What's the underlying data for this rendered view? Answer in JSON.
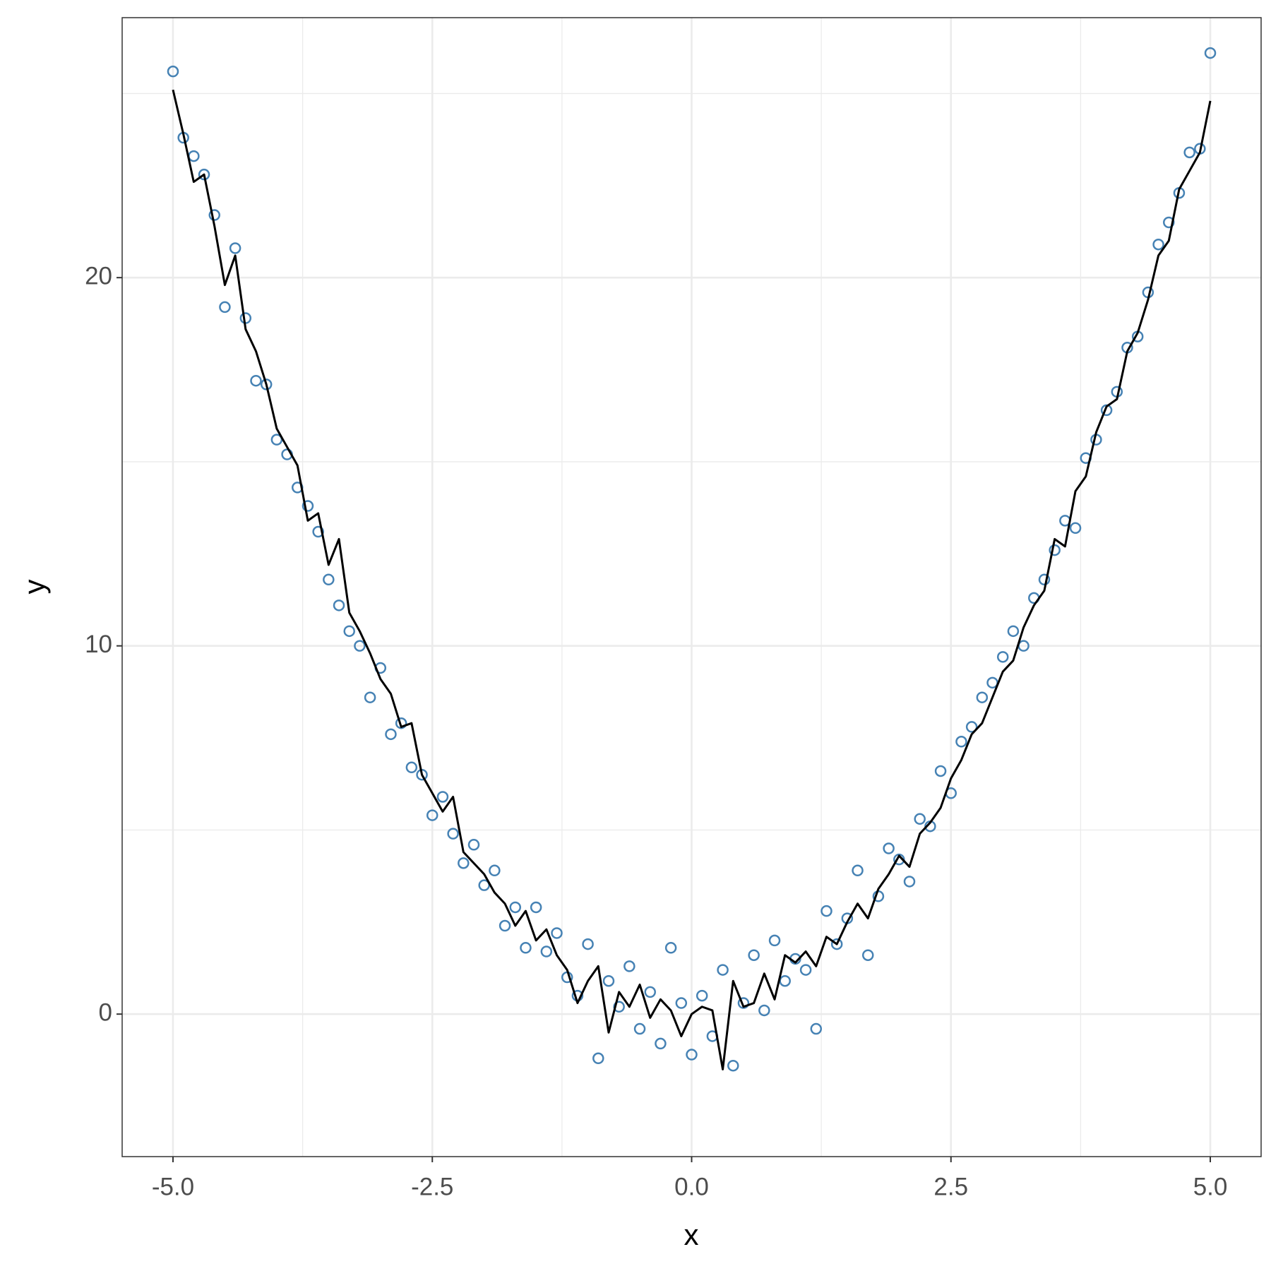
{
  "chart_data": {
    "type": "scatter",
    "x_label": "x",
    "y_label": "y",
    "x": [
      -5,
      -4.9,
      -4.8,
      -4.7,
      -4.6,
      -4.5,
      -4.4,
      -4.3,
      -4.2,
      -4.1,
      -4,
      -3.9,
      -3.8,
      -3.7,
      -3.6,
      -3.5,
      -3.4,
      -3.3,
      -3.2,
      -3.1,
      -3,
      -2.9,
      -2.8,
      -2.7,
      -2.6,
      -2.5,
      -2.4,
      -2.3,
      -2.2,
      -2.1,
      -2,
      -1.9,
      -1.8,
      -1.7,
      -1.6,
      -1.5,
      -1.4,
      -1.3,
      -1.2,
      -1.1,
      -1,
      -0.9,
      -0.8,
      -0.7,
      -0.6,
      -0.5,
      -0.4,
      -0.3,
      -0.2,
      -0.1,
      0,
      0.1,
      0.2,
      0.3,
      0.4,
      0.5,
      0.6,
      0.7,
      0.8,
      0.9,
      1,
      1.1,
      1.2,
      1.3,
      1.4,
      1.5,
      1.6,
      1.7,
      1.8,
      1.9,
      2,
      2.1,
      2.2,
      2.3,
      2.4,
      2.5,
      2.6,
      2.7,
      2.8,
      2.9,
      3,
      3.1,
      3.2,
      3.3,
      3.4,
      3.5,
      3.6,
      3.7,
      3.8,
      3.9,
      4,
      4.1,
      4.2,
      4.3,
      4.4,
      4.5,
      4.6,
      4.7,
      4.8,
      4.9,
      5
    ],
    "series": [
      {
        "type": "scatter",
        "color": "#4682b4",
        "values": [
          25.6,
          23.8,
          23.3,
          22.8,
          21.7,
          19.2,
          20.8,
          18.9,
          17.2,
          17.1,
          15.6,
          15.2,
          14.3,
          13.8,
          13.1,
          11.8,
          11.1,
          10.4,
          10.0,
          8.6,
          9.4,
          7.6,
          7.9,
          6.7,
          6.5,
          5.4,
          5.9,
          4.9,
          4.1,
          4.6,
          3.5,
          3.9,
          2.4,
          2.9,
          1.8,
          2.9,
          1.7,
          2.2,
          1.0,
          0.5,
          1.9,
          -1.2,
          0.9,
          0.2,
          1.3,
          -0.4,
          0.6,
          -0.8,
          1.8,
          0.3,
          -1.1,
          0.5,
          -0.6,
          1.2,
          -1.4,
          0.3,
          1.6,
          0.1,
          2.0,
          0.9,
          1.5,
          1.2,
          -0.4,
          2.8,
          1.9,
          2.6,
          3.9,
          1.6,
          3.2,
          4.5,
          4.2,
          3.6,
          5.3,
          5.1,
          6.6,
          6.0,
          7.4,
          7.8,
          8.6,
          9.0,
          9.7,
          10.4,
          10.0,
          11.3,
          11.8,
          12.6,
          13.4,
          13.2,
          15.1,
          15.6,
          16.4,
          16.9,
          18.1,
          18.4,
          19.6,
          20.9,
          21.5,
          22.3,
          23.4,
          23.5,
          26.1
        ]
      },
      {
        "type": "line",
        "color": "#000000",
        "values": [
          25.1,
          23.9,
          22.6,
          22.8,
          21.4,
          19.8,
          20.6,
          18.6,
          18.0,
          17.1,
          15.9,
          15.4,
          14.9,
          13.4,
          13.6,
          12.2,
          12.9,
          10.9,
          10.4,
          9.8,
          9.1,
          8.7,
          7.8,
          7.9,
          6.5,
          6.0,
          5.5,
          5.9,
          4.4,
          4.1,
          3.8,
          3.3,
          3.0,
          2.4,
          2.8,
          2.0,
          2.3,
          1.6,
          1.2,
          0.3,
          0.9,
          1.3,
          -0.5,
          0.6,
          0.2,
          0.8,
          -0.1,
          0.4,
          0.1,
          -0.6,
          0.0,
          0.2,
          0.1,
          -1.5,
          0.9,
          0.2,
          0.3,
          1.1,
          0.4,
          1.6,
          1.4,
          1.7,
          1.3,
          2.1,
          1.9,
          2.5,
          3.0,
          2.6,
          3.4,
          3.8,
          4.3,
          4.0,
          4.9,
          5.2,
          5.6,
          6.4,
          6.9,
          7.6,
          7.9,
          8.6,
          9.3,
          9.6,
          10.5,
          11.1,
          11.5,
          12.9,
          12.7,
          14.2,
          14.6,
          15.8,
          16.5,
          16.7,
          18.0,
          18.5,
          19.4,
          20.6,
          21.0,
          22.4,
          22.9,
          23.4,
          24.8
        ]
      }
    ],
    "xlim": [
      -5.49,
      5.49
    ],
    "ylim": [
      -3.87,
      27.06
    ],
    "xticks": [
      {
        "value": -5,
        "label": "-5.0"
      },
      {
        "value": -2.5,
        "label": "-2.5"
      },
      {
        "value": 0,
        "label": "0.0"
      },
      2.5,
      {
        "value": 5,
        "label": "5.0"
      }
    ],
    "yticks": [
      0,
      10,
      20
    ],
    "x_minor_grid": [
      -3.75,
      -1.25,
      1.25,
      3.75
    ],
    "y_minor_grid": [
      5,
      15,
      25
    ],
    "grid": true
  }
}
